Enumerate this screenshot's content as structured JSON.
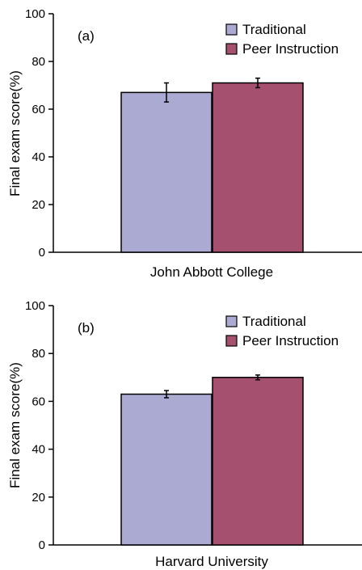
{
  "chart_data": [
    {
      "type": "bar",
      "panel_label": "(a)",
      "categories": [
        "John Abbott College"
      ],
      "xlabel": "John Abbott College",
      "ylabel": "Final exam score(%)",
      "ylim": [
        0,
        100
      ],
      "yticks": [
        0,
        20,
        40,
        60,
        80,
        100
      ],
      "grid": false,
      "legend_position": "top-right",
      "series": [
        {
          "name": "Traditional",
          "values": [
            67
          ],
          "error": [
            4
          ],
          "color": "#abaad2"
        },
        {
          "name": "Peer Instruction",
          "values": [
            71
          ],
          "error": [
            2
          ],
          "color": "#a6506f"
        }
      ]
    },
    {
      "type": "bar",
      "panel_label": "(b)",
      "categories": [
        "Harvard University"
      ],
      "xlabel": "Harvard University",
      "ylabel": "Final exam score(%)",
      "ylim": [
        0,
        100
      ],
      "yticks": [
        0,
        20,
        40,
        60,
        80,
        100
      ],
      "grid": false,
      "legend_position": "top-right",
      "series": [
        {
          "name": "Traditional",
          "values": [
            63
          ],
          "error": [
            1.5
          ],
          "color": "#abaad2"
        },
        {
          "name": "Peer Instruction",
          "values": [
            70
          ],
          "error": [
            1
          ],
          "color": "#a6506f"
        }
      ]
    }
  ]
}
